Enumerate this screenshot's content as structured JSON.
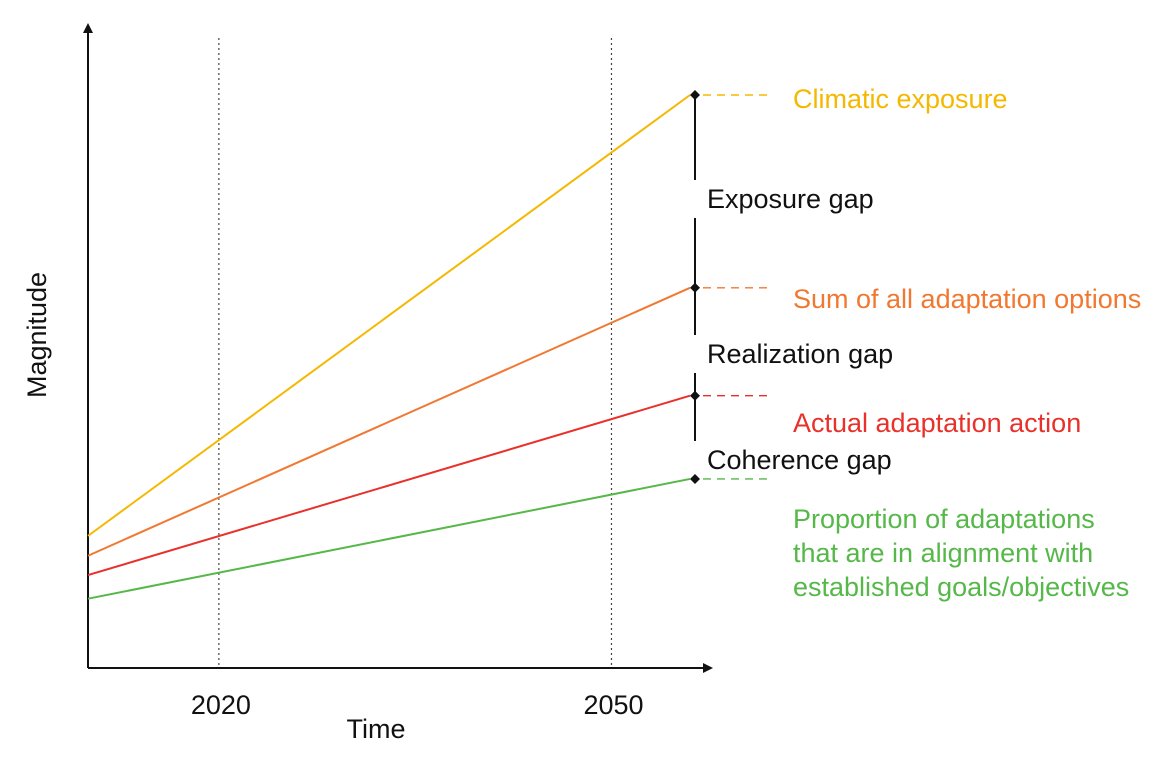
{
  "chart_data": {
    "type": "line",
    "title": "",
    "xlabel": "Time",
    "ylabel": "Magnitude",
    "x_ticks": [
      "2020",
      "2050"
    ],
    "reference_lines": [
      "2020",
      "2050"
    ],
    "xlim": [
      2010,
      2056
    ],
    "ylim": [
      0,
      100
    ],
    "grid": false,
    "legend": "inline labels at right end of each line",
    "series": [
      {
        "name": "Climatic exposure",
        "color": "#F5B800",
        "x": [
          2010,
          2056
        ],
        "y": [
          17.9,
          100
        ]
      },
      {
        "name": "Sum of all adaptation options",
        "color": "#F07830",
        "x": [
          2010,
          2056
        ],
        "y": [
          14.2,
          64.1
        ]
      },
      {
        "name": "Actual adaptation action",
        "color": "#E8312A",
        "x": [
          2010,
          2056
        ],
        "y": [
          10.6,
          44.0
        ]
      },
      {
        "name": "Proportion of adaptations\nthat are in alignment with\nestablished goals/objectives",
        "color": "#55B848",
        "x": [
          2010,
          2056
        ],
        "y": [
          6.2,
          28.5
        ]
      }
    ],
    "gaps": [
      {
        "name": "Exposure gap",
        "from": 64.1,
        "to": 100
      },
      {
        "name": "Realization gap",
        "from": 44.0,
        "to": 64.1
      },
      {
        "name": "Coherence gap",
        "from": 28.5,
        "to": 44.0
      }
    ]
  }
}
